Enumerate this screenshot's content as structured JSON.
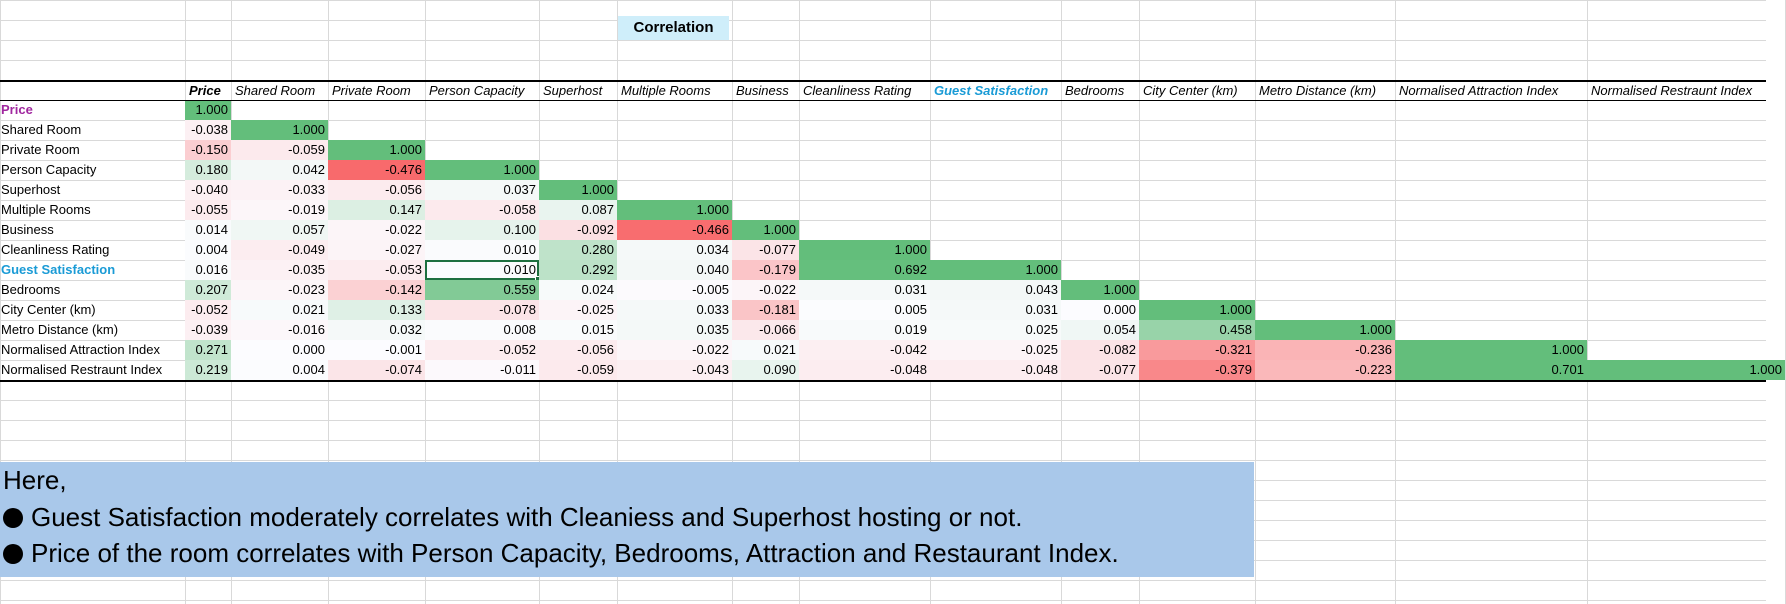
{
  "title": "Correlation",
  "headers": [
    "Price",
    "Shared Room",
    "Private Room",
    "Person Capacity",
    "Superhost",
    "Multiple Rooms",
    "Business",
    "Cleanliness Rating",
    "Guest Satisfaction",
    "Bedrooms",
    "City Center (km)",
    "Metro Distance (km)",
    "Normalised Attraction Index",
    "Normalised Restraunt Index"
  ],
  "rows": [
    {
      "label": "Price",
      "values": [
        "1.000"
      ]
    },
    {
      "label": "Shared Room",
      "values": [
        "-0.038",
        "1.000"
      ]
    },
    {
      "label": "Private Room",
      "values": [
        "-0.150",
        "-0.059",
        "1.000"
      ]
    },
    {
      "label": "Person Capacity",
      "values": [
        "0.180",
        "0.042",
        "-0.476",
        "1.000"
      ]
    },
    {
      "label": "Superhost",
      "values": [
        "-0.040",
        "-0.033",
        "-0.056",
        "0.037",
        "1.000"
      ]
    },
    {
      "label": "Multiple Rooms",
      "values": [
        "-0.055",
        "-0.019",
        "0.147",
        "-0.058",
        "0.087",
        "1.000"
      ]
    },
    {
      "label": "Business",
      "values": [
        "0.014",
        "0.057",
        "-0.022",
        "0.100",
        "-0.092",
        "-0.466",
        "1.000"
      ]
    },
    {
      "label": "Cleanliness Rating",
      "values": [
        "0.004",
        "-0.049",
        "-0.027",
        "0.010",
        "0.280",
        "0.034",
        "-0.077",
        "1.000"
      ]
    },
    {
      "label": "Guest Satisfaction",
      "values": [
        "0.016",
        "-0.035",
        "-0.053",
        "0.010",
        "0.292",
        "0.040",
        "-0.179",
        "0.692",
        "1.000"
      ]
    },
    {
      "label": "Bedrooms",
      "values": [
        "0.207",
        "-0.023",
        "-0.142",
        "0.559",
        "0.024",
        "-0.005",
        "-0.022",
        "0.031",
        "0.043",
        "1.000"
      ]
    },
    {
      "label": "City Center (km)",
      "values": [
        "-0.052",
        "0.021",
        "0.133",
        "-0.078",
        "-0.025",
        "0.033",
        "-0.181",
        "0.005",
        "0.031",
        "0.000",
        "1.000"
      ]
    },
    {
      "label": "Metro Distance (km)",
      "values": [
        "-0.039",
        "-0.016",
        "0.032",
        "0.008",
        "0.015",
        "0.035",
        "-0.066",
        "0.019",
        "0.025",
        "0.054",
        "0.458",
        "1.000"
      ]
    },
    {
      "label": "Normalised Attraction Index",
      "values": [
        "0.271",
        "0.000",
        "-0.001",
        "-0.052",
        "-0.056",
        "-0.022",
        "0.021",
        "-0.042",
        "-0.025",
        "-0.082",
        "-0.321",
        "-0.236",
        "1.000"
      ]
    },
    {
      "label": "Normalised Restraunt Index",
      "values": [
        "0.219",
        "0.004",
        "-0.074",
        "-0.011",
        "-0.059",
        "-0.043",
        "0.090",
        "-0.048",
        "-0.048",
        "-0.077",
        "-0.379",
        "-0.223",
        "0.701",
        "1.000"
      ]
    }
  ],
  "selected_cell": {
    "row": "Guest Satisfaction",
    "column": "Person Capacity"
  },
  "colors": {
    "positive": "#63be7b",
    "negative": "#f8696b",
    "neutral": "#fcfcff",
    "gridline": "#d9d9d9",
    "title_fill": "#cfeefa",
    "notes_fill": "#a9c8ea",
    "accent_price": "#a0279f",
    "accent_guest": "#1a9bd6"
  },
  "notes": {
    "intro": "Here,",
    "bullets": [
      "Guest Satisfaction moderately correlates with Cleaniess and Superhost hosting or not.",
      "Price of the room correlates with Person Capacity, Bedrooms, Attraction and Restaurant Index."
    ]
  }
}
